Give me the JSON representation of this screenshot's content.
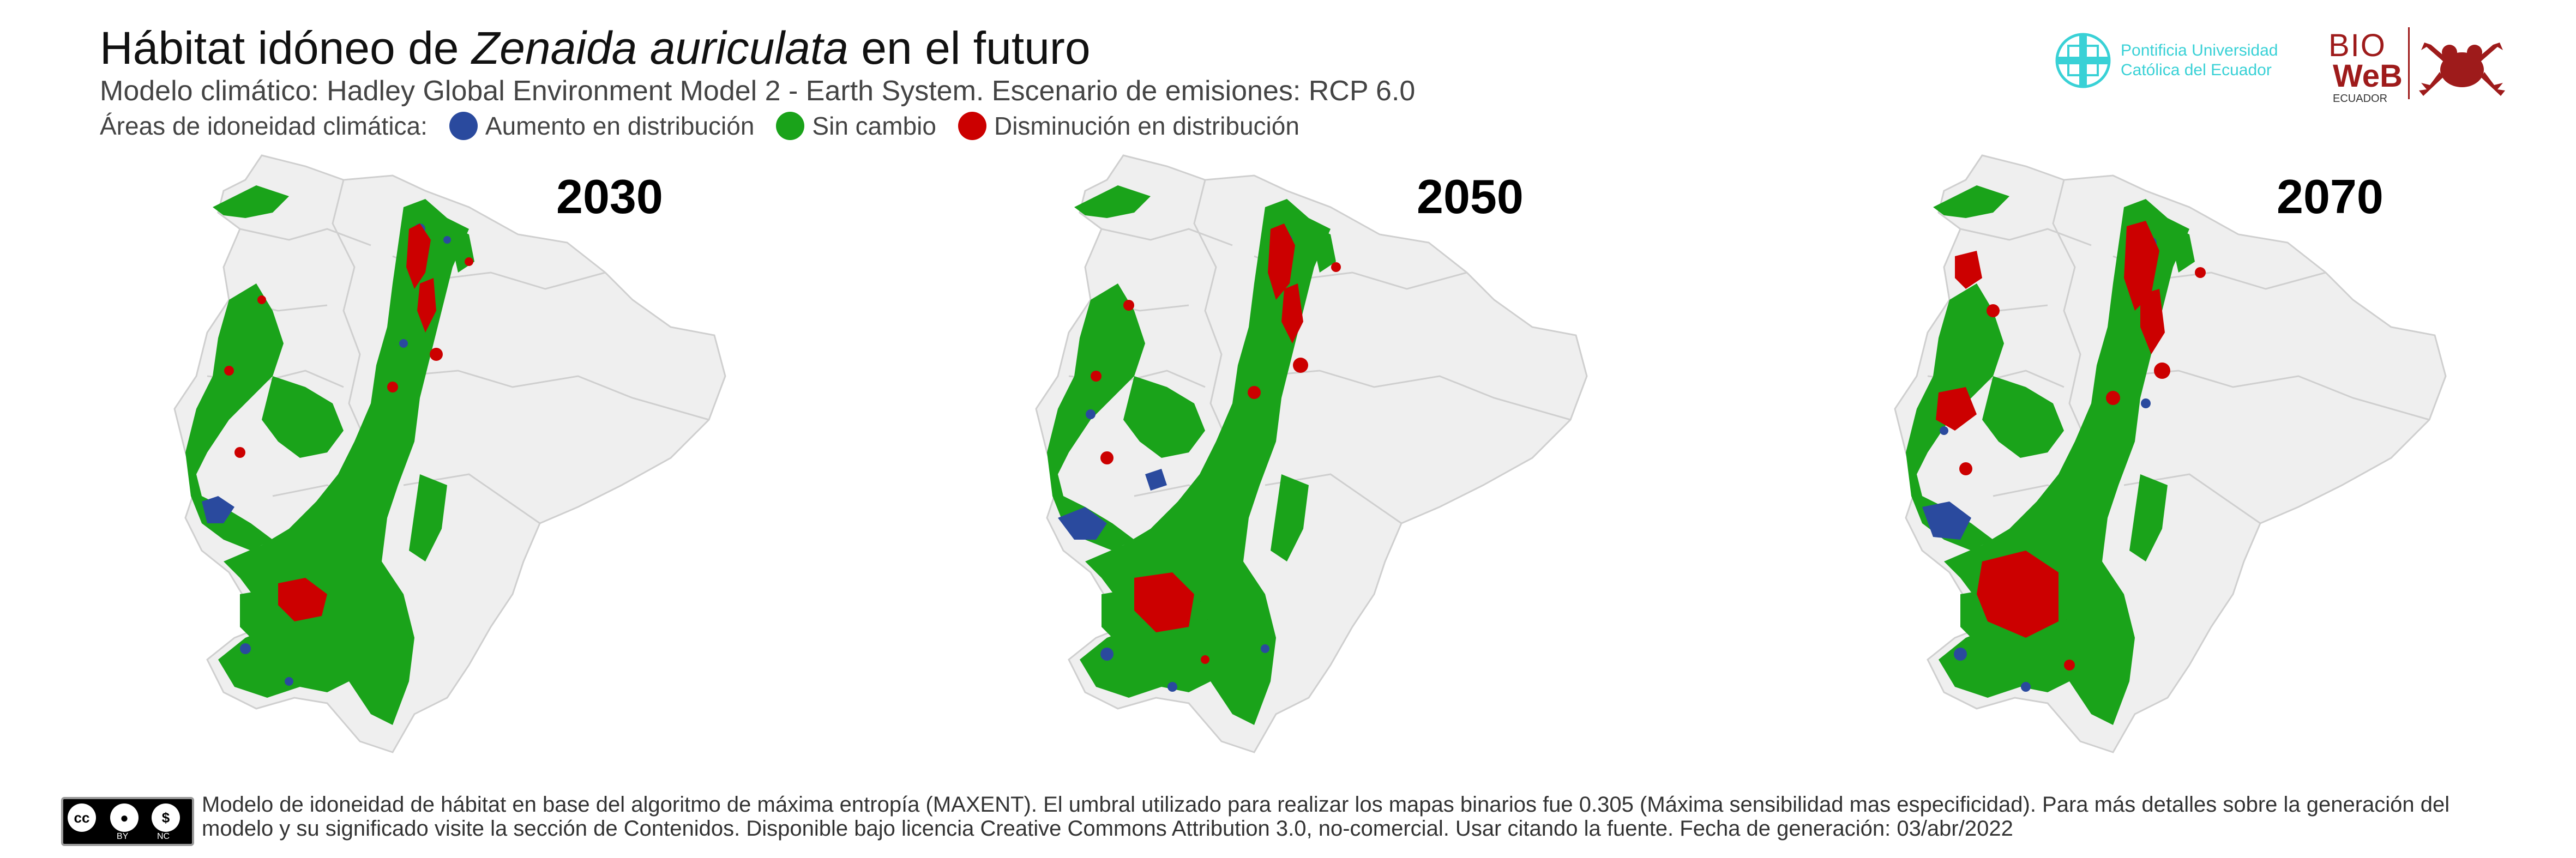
{
  "header": {
    "title_part1": "Hábitat idóneo de ",
    "title_species": "Zenaida auriculata",
    "title_part2": " en el futuro",
    "subtitle": "Modelo climático: Hadley Global Environment Model 2 - Earth System. Escenario de emisiones: RCP 6.0",
    "legend_label": "Áreas de idoneidad climática:",
    "legend_items": [
      {
        "label": "Aumento en distribución",
        "color": "#2a4a9e"
      },
      {
        "label": "Sin cambio",
        "color": "#1aa31a"
      },
      {
        "label": "Disminución en distribución",
        "color": "#cc0000"
      }
    ]
  },
  "logos": {
    "puce_line1": "Pontificia Universidad",
    "puce_line2": "Católica del Ecuador",
    "bio": "BIO",
    "web": "WeB",
    "ecuador": "ECUADOR"
  },
  "maps": [
    {
      "year": "2030"
    },
    {
      "year": "2050"
    },
    {
      "year": "2070"
    }
  ],
  "footer": {
    "cc_by": "BY",
    "cc_nc": "NC",
    "text": "Modelo de idoneidad de hábitat en base del algoritmo de máxima entropía (MAXENT). El umbral utilizado para realizar los mapas binarios fue 0.305 (Máxima sensibilidad mas especificidad). Para más detalles sobre la generación del modelo y su significado visite la sección de Contenidos. Disponible bajo licencia Creative Commons Attribution 3.0, no-comercial. Usar citando la fuente. Fecha de generación: 03/abr/2022"
  },
  "colors": {
    "land": "#efefef",
    "border": "#cfcfcf",
    "increase": "#2a4a9e",
    "no_change": "#1aa31a",
    "decrease": "#cc0000"
  }
}
